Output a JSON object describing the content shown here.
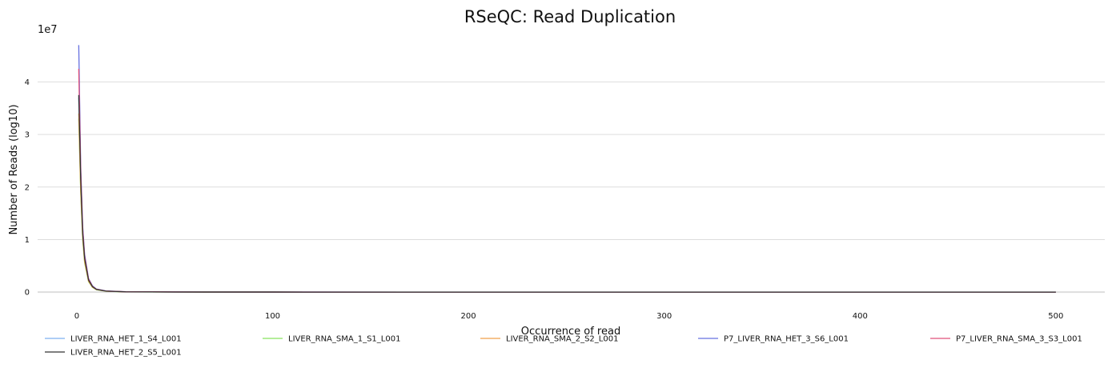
{
  "chart_data": {
    "type": "line",
    "title": "RSeQC: Read Duplication",
    "xlabel": "Occurrence of read",
    "ylabel": "Number of Reads (log10)",
    "y_offset_label": "1e7",
    "xlim": [
      -20,
      525
    ],
    "ylim": [
      -0.15,
      4.95
    ],
    "x_ticks": [
      {
        "value": 0,
        "label": "0"
      },
      {
        "value": 100,
        "label": "100"
      },
      {
        "value": 200,
        "label": "200"
      },
      {
        "value": 300,
        "label": "300"
      },
      {
        "value": 400,
        "label": "400"
      },
      {
        "value": 500,
        "label": "500"
      }
    ],
    "y_ticks": [
      {
        "value": 0,
        "label": "0"
      },
      {
        "value": 1,
        "label": "1"
      },
      {
        "value": 2,
        "label": "2"
      },
      {
        "value": 3,
        "label": "3"
      },
      {
        "value": 4,
        "label": "4"
      }
    ],
    "grid": "horizontal",
    "legend_position": "bottom",
    "series": [
      {
        "name": "LIVER_RNA_HET_1_S4_L001",
        "color": "#7eb0f0",
        "x": [
          1,
          2,
          3,
          4,
          6,
          8,
          10,
          15,
          25,
          50,
          100,
          200,
          300,
          400,
          500
        ],
        "y": [
          3.7,
          2.1,
          1.1,
          0.62,
          0.22,
          0.1,
          0.05,
          0.018,
          0.006,
          0.002,
          0.001,
          0.0003,
          0.0001,
          0.0001,
          0.0001
        ]
      },
      {
        "name": "LIVER_RNA_SMA_1_S1_L001",
        "color": "#86e35e",
        "x": [
          1,
          2,
          3,
          4,
          6,
          8,
          10,
          15,
          25,
          50,
          100,
          200,
          300,
          400,
          500
        ],
        "y": [
          3.3,
          1.9,
          1.0,
          0.56,
          0.2,
          0.09,
          0.045,
          0.016,
          0.005,
          0.002,
          0.001,
          0.0003,
          0.0001,
          0.0001,
          0.0001
        ]
      },
      {
        "name": "LIVER_RNA_SMA_2_S2_L001",
        "color": "#f0a04a",
        "x": [
          1,
          2,
          3,
          4,
          6,
          8,
          10,
          15,
          25,
          50,
          100,
          200,
          300,
          400,
          500
        ],
        "y": [
          3.4,
          1.95,
          1.05,
          0.58,
          0.21,
          0.095,
          0.048,
          0.017,
          0.006,
          0.002,
          0.001,
          0.0003,
          0.0001,
          0.0001,
          0.0001
        ]
      },
      {
        "name": "P7_LIVER_RNA_HET_3_S6_L001",
        "color": "#6670e0",
        "x": [
          1,
          2,
          3,
          4,
          6,
          8,
          10,
          15,
          25,
          50,
          100,
          200,
          300,
          400,
          500
        ],
        "y": [
          4.7,
          2.4,
          1.25,
          0.72,
          0.26,
          0.12,
          0.06,
          0.022,
          0.008,
          0.003,
          0.001,
          0.0004,
          0.0002,
          0.0001,
          0.0001
        ]
      },
      {
        "name": "P7_LIVER_RNA_SMA_3_S3_L001",
        "color": "#e0507a",
        "x": [
          1,
          2,
          3,
          4,
          6,
          8,
          10,
          15,
          25,
          50,
          100,
          200,
          300,
          400,
          500
        ],
        "y": [
          4.25,
          2.3,
          1.2,
          0.68,
          0.25,
          0.11,
          0.055,
          0.02,
          0.007,
          0.003,
          0.001,
          0.0004,
          0.0002,
          0.0001,
          0.0001
        ]
      },
      {
        "name": "LIVER_RNA_HET_2_S5_L001",
        "color": "#333333",
        "x": [
          1,
          2,
          3,
          4,
          6,
          8,
          10,
          15,
          25,
          50,
          100,
          200,
          300,
          400,
          500
        ],
        "y": [
          3.75,
          2.15,
          1.12,
          0.64,
          0.23,
          0.105,
          0.052,
          0.019,
          0.006,
          0.002,
          0.001,
          0.0003,
          0.0001,
          0.0001,
          0.0001
        ]
      }
    ]
  }
}
